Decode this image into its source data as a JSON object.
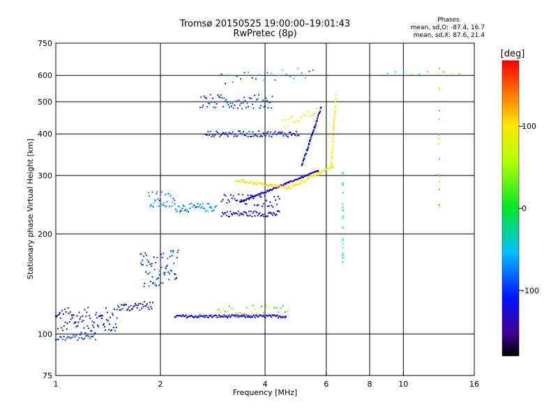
{
  "chart_data": {
    "type": "scatter",
    "title": "Tromsø 20150525 19:00:00–19:01:43",
    "subtitle": "RwPretec (8p)",
    "xlabel": "Frequency [MHz]",
    "ylabel": "Stationary phase Virtual Height [km]",
    "x_scale": "log",
    "y_scale": "log",
    "xlim": [
      1,
      16
    ],
    "ylim": [
      75,
      750
    ],
    "x_ticks": [
      1,
      2,
      4,
      6,
      8,
      10,
      16
    ],
    "x_tick_labels": [
      "1",
      "2",
      "4",
      "6",
      "8",
      "10",
      "16"
    ],
    "y_ticks": [
      75,
      100,
      200,
      300,
      400,
      500,
      600,
      750
    ],
    "y_tick_labels": [
      "75",
      "100",
      "200",
      "300",
      "400",
      "500",
      "600",
      "750"
    ],
    "grid": true,
    "phase_box": {
      "title": "Phases",
      "line1": "mean, sd,O: -87.4, 16.7",
      "line2": "mean, sd,X:  87.6, 21.4"
    },
    "colorbar": {
      "label": "[deg]",
      "range": [
        -180,
        180
      ],
      "ticks": [
        100,
        0,
        -100
      ],
      "tick_labels": [
        "100",
        "0",
        "-100"
      ]
    },
    "series": [
      {
        "traces": [
          {
            "x0": 1.0,
            "x1": 1.5,
            "y0": 110,
            "y1": 110,
            "n": 90,
            "js": 0.09,
            "c": -108,
            "cs": 12
          },
          {
            "x0": 1.0,
            "x1": 1.3,
            "y0": 97,
            "y1": 98,
            "n": 30,
            "js": 0.02,
            "c": -95,
            "cs": 8
          },
          {
            "x0": 1.5,
            "x1": 1.9,
            "y0": 120,
            "y1": 122,
            "n": 40,
            "js": 0.03,
            "c": -112,
            "cs": 10
          },
          {
            "x0": 1.75,
            "x1": 2.25,
            "y0": 155,
            "y1": 160,
            "n": 70,
            "js": 0.12,
            "c": -95,
            "cs": 20
          },
          {
            "x0": 2.2,
            "x1": 4.6,
            "y0": 113,
            "y1": 113,
            "n": 130,
            "js": 0.01,
            "c": -118,
            "cs": 10
          },
          {
            "x0": 2.9,
            "x1": 4.7,
            "y0": 118,
            "y1": 120,
            "n": 35,
            "js": 0.03,
            "c": 55,
            "cs": 60
          },
          {
            "x0": 1.85,
            "x1": 2.2,
            "y0": 255,
            "y1": 250,
            "n": 35,
            "js": 0.06,
            "c": -65,
            "cs": 25
          },
          {
            "x0": 2.2,
            "x1": 2.9,
            "y0": 240,
            "y1": 240,
            "n": 50,
            "js": 0.03,
            "c": -70,
            "cs": 25
          },
          {
            "x0": 3.0,
            "x1": 4.4,
            "y0": 230,
            "y1": 230,
            "n": 60,
            "js": 0.02,
            "c": -125,
            "cs": 12
          },
          {
            "x0": 3.0,
            "x1": 4.4,
            "y0": 255,
            "y1": 250,
            "n": 45,
            "js": 0.04,
            "c": -115,
            "cs": 15
          },
          {
            "x0": 3.4,
            "x1": 5.7,
            "y0": 250,
            "y1": 310,
            "n": 110,
            "js": 0.005,
            "c": -128,
            "cs": 8
          },
          {
            "x0": 5.1,
            "x1": 5.8,
            "y0": 320,
            "y1": 480,
            "n": 60,
            "js": 0.01,
            "c": -115,
            "cs": 12
          },
          {
            "x0": 3.3,
            "x1": 4.7,
            "y0": 290,
            "y1": 275,
            "n": 60,
            "js": 0.01,
            "c": 105,
            "cs": 15
          },
          {
            "x0": 4.7,
            "x1": 6.3,
            "y0": 275,
            "y1": 320,
            "n": 60,
            "js": 0.01,
            "c": 95,
            "cs": 15
          },
          {
            "x0": 6.2,
            "x1": 6.4,
            "y0": 320,
            "y1": 520,
            "n": 50,
            "js": 0.01,
            "c": 95,
            "cs": 15
          },
          {
            "x0": 2.7,
            "x1": 5.0,
            "y0": 400,
            "y1": 400,
            "n": 80,
            "js": 0.02,
            "c": -105,
            "cs": 12
          },
          {
            "x0": 2.6,
            "x1": 4.2,
            "y0": 500,
            "y1": 500,
            "n": 70,
            "js": 0.05,
            "c": -95,
            "cs": 15
          },
          {
            "x0": 3.0,
            "x1": 5.5,
            "y0": 590,
            "y1": 610,
            "n": 25,
            "js": 0.04,
            "c": -70,
            "cs": 40
          },
          {
            "x0": 4.5,
            "x1": 5.8,
            "y0": 430,
            "y1": 470,
            "n": 25,
            "js": 0.03,
            "c": 80,
            "cs": 30
          },
          {
            "x0": 6.7,
            "x1": 6.7,
            "y0": 160,
            "y1": 300,
            "n": 25,
            "js": 0.05,
            "c": -25,
            "cs": 20
          },
          {
            "x0": 12.7,
            "x1": 12.7,
            "y0": 230,
            "y1": 600,
            "n": 14,
            "js": 0.05,
            "c": 60,
            "cs": 90
          },
          {
            "x0": 9.0,
            "x1": 14.5,
            "y0": 610,
            "y1": 610,
            "n": 10,
            "js": 0.01,
            "c": 40,
            "cs": 80
          }
        ]
      }
    ]
  }
}
